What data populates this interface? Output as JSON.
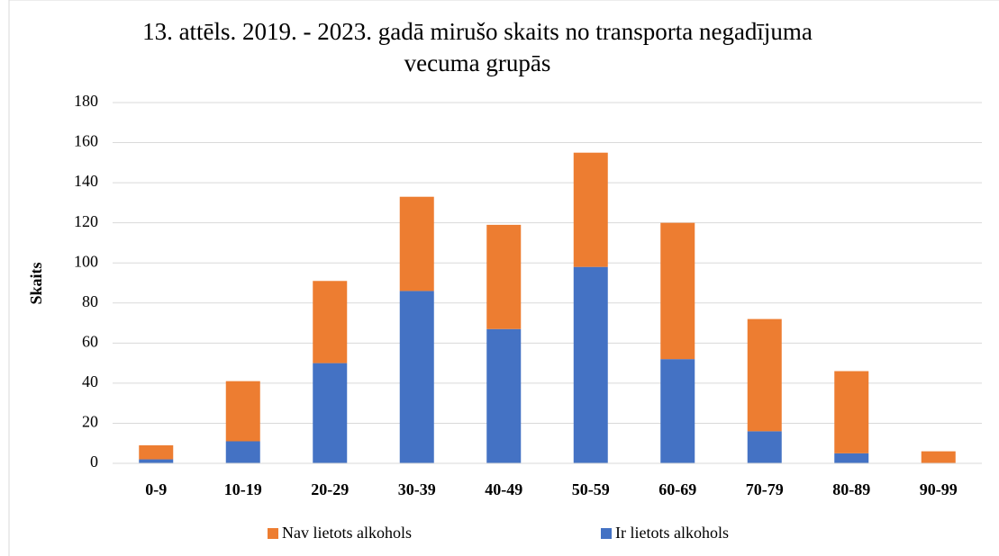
{
  "chart_data": {
    "type": "stacked_bar",
    "title": "13. attēls. 2019. - 2023. gadā mirušo skaits no transporta negadījuma vecuma grupās",
    "y_label": "Skaits",
    "categories": [
      "0-9",
      "10-19",
      "20-29",
      "30-39",
      "40-49",
      "50-59",
      "60-69",
      "70-79",
      "80-89",
      "90-99"
    ],
    "series": [
      {
        "name": "Ir lietots alkohols",
        "color": "#4472c4",
        "values": [
          2,
          11,
          50,
          86,
          67,
          98,
          52,
          16,
          5,
          0
        ]
      },
      {
        "name": "Nav lietots alkohols",
        "color": "#ed7d31",
        "values": [
          7,
          30,
          41,
          47,
          52,
          57,
          68,
          56,
          41,
          6
        ]
      }
    ],
    "ylim": [
      0,
      180
    ],
    "yticks": [
      0,
      20,
      40,
      60,
      80,
      100,
      120,
      140,
      160,
      180
    ],
    "grid": true,
    "legend": "bottom"
  }
}
